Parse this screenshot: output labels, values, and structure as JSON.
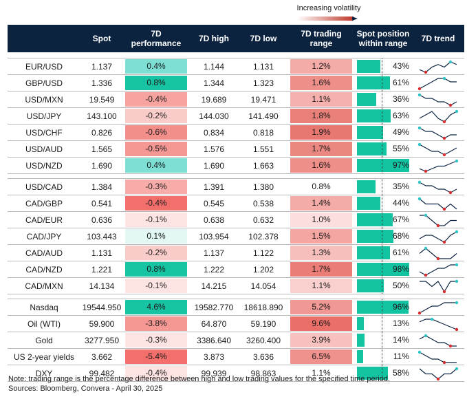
{
  "volatility_label": "Increasing volatility",
  "headers": {
    "pair": "",
    "spot": "Spot",
    "perf_line1": "7D",
    "perf_line2": "performance",
    "high": "7D high",
    "low": "7D low",
    "range_line1": "7D trading",
    "range_line2": "range",
    "pos_line1": "Spot position",
    "pos_line2": "within range",
    "trend": "7D trend"
  },
  "colors": {
    "header_bg": "#0c2340",
    "teal_bar": "#13c4a3",
    "trend_line": "#0c2340",
    "trend_min": "#d92b2b",
    "trend_max": "#2fc4c4"
  },
  "groups": [
    [
      {
        "name": "EUR/USD",
        "spot": "1.137",
        "perf": "0.4%",
        "high": "1.144",
        "low": "1.131",
        "range": "1.2%",
        "pos": "43%",
        "perf_v": 0.4,
        "range_v": 1.2,
        "pos_v": 43,
        "trend": [
          3,
          2,
          4,
          5,
          4,
          6,
          5
        ],
        "perf_c": "#7ee0d4",
        "range_c": "#f3aca8"
      },
      {
        "name": "GBP/USD",
        "spot": "1.336",
        "perf": "0.8%",
        "high": "1.344",
        "low": "1.323",
        "range": "1.6%",
        "pos": "61%",
        "perf_v": 0.8,
        "range_v": 1.6,
        "pos_v": 61,
        "trend": [
          2,
          3,
          4,
          5,
          5,
          4,
          4
        ],
        "perf_c": "#16c3a2",
        "range_c": "#ee8f8a"
      },
      {
        "name": "USD/MXN",
        "spot": "19.549",
        "perf": "-0.4%",
        "high": "19.689",
        "low": "19.471",
        "range": "1.1%",
        "pos": "36%",
        "perf_v": -0.4,
        "range_v": 1.1,
        "pos_v": 36,
        "trend": [
          5,
          4,
          4,
          3,
          3,
          2,
          3
        ],
        "perf_c": "#f7a4a1",
        "range_c": "#f4b1ad"
      },
      {
        "name": "USD/JPY",
        "spot": "143.100",
        "perf": "-0.2%",
        "high": "144.030",
        "low": "141.490",
        "range": "1.8%",
        "pos": "63%",
        "perf_v": -0.2,
        "range_v": 1.8,
        "pos_v": 63,
        "trend": [
          3,
          4,
          5,
          3,
          2,
          4,
          5
        ],
        "perf_c": "#f9cbc9",
        "range_c": "#ea807a"
      },
      {
        "name": "USD/CHF",
        "spot": "0.826",
        "perf": "-0.6%",
        "high": "0.834",
        "low": "0.818",
        "range": "1.9%",
        "pos": "49%",
        "perf_v": -0.6,
        "range_v": 1.9,
        "pos_v": 49,
        "trend": [
          5,
          4,
          4,
          3,
          2,
          3,
          3
        ],
        "perf_c": "#f38f8b",
        "range_c": "#e87772"
      },
      {
        "name": "USD/AUD",
        "spot": "1.565",
        "perf": "-0.5%",
        "high": "1.576",
        "low": "1.551",
        "range": "1.7%",
        "pos": "55%",
        "perf_v": -0.5,
        "range_v": 1.7,
        "pos_v": 55,
        "trend": [
          5,
          4,
          3,
          3,
          2,
          3,
          4
        ],
        "perf_c": "#f59894",
        "range_c": "#eb8781"
      },
      {
        "name": "USD/NZD",
        "spot": "1.690",
        "perf": "0.4%",
        "high": "1.690",
        "low": "1.663",
        "range": "1.6%",
        "pos": "97%",
        "perf_v": 0.4,
        "range_v": 1.6,
        "pos_v": 97,
        "trend": [
          2,
          1,
          2,
          3,
          3,
          4,
          5
        ],
        "perf_c": "#7ee0d4",
        "range_c": "#ee8f8a"
      }
    ],
    [
      {
        "name": "USD/CAD",
        "spot": "1.384",
        "perf": "-0.3%",
        "high": "1.391",
        "low": "1.380",
        "range": "0.8%",
        "pos": "35%",
        "perf_v": -0.3,
        "range_v": 0.8,
        "pos_v": 35,
        "trend": [
          5,
          4,
          4,
          3,
          3,
          2,
          3
        ],
        "perf_c": "#f7aca9",
        "range_c": "#ffffff"
      },
      {
        "name": "CAD/GBP",
        "spot": "0.541",
        "perf": "-0.4%",
        "high": "0.545",
        "low": "0.538",
        "range": "1.4%",
        "pos": "44%",
        "perf_v": -0.4,
        "range_v": 1.4,
        "pos_v": 44,
        "trend": [
          5,
          4,
          4,
          4,
          3,
          4,
          3
        ],
        "perf_c": "#f26f6b",
        "range_c": "#f4aca8"
      },
      {
        "name": "CAD/EUR",
        "spot": "0.636",
        "perf": "-0.1%",
        "high": "0.638",
        "low": "0.632",
        "range": "1.0%",
        "pos": "67%",
        "perf_v": -0.1,
        "range_v": 1.0,
        "pos_v": 67,
        "trend": [
          5,
          5,
          4,
          3,
          3,
          4,
          4
        ],
        "perf_c": "#fde4e3",
        "range_c": "#fbdedd"
      },
      {
        "name": "CAD/JPY",
        "spot": "103.443",
        "perf": "0.1%",
        "high": "103.954",
        "low": "102.378",
        "range": "1.5%",
        "pos": "68%",
        "perf_v": 0.1,
        "range_v": 1.5,
        "pos_v": 68,
        "trend": [
          3,
          4,
          4,
          3,
          2,
          4,
          5
        ],
        "perf_c": "#e3f8f5",
        "range_c": "#f3a6a2"
      },
      {
        "name": "CAD/AUD",
        "spot": "1.131",
        "perf": "-0.2%",
        "high": "1.137",
        "low": "1.122",
        "range": "1.3%",
        "pos": "61%",
        "perf_v": -0.2,
        "range_v": 1.3,
        "pos_v": 61,
        "trend": [
          4,
          5,
          4,
          3,
          3,
          3,
          4
        ],
        "perf_c": "#f9cbc9",
        "range_c": "#f6bfbc"
      },
      {
        "name": "CAD/NZD",
        "spot": "1.221",
        "perf": "0.8%",
        "high": "1.222",
        "low": "1.202",
        "range": "1.7%",
        "pos": "98%",
        "perf_v": 0.8,
        "range_v": 1.7,
        "pos_v": 98,
        "trend": [
          3,
          2,
          3,
          4,
          4,
          5,
          5
        ],
        "perf_c": "#16c3a2",
        "range_c": "#eb7d78"
      },
      {
        "name": "CAD/MXN",
        "spot": "14.134",
        "perf": "-0.1%",
        "high": "14.215",
        "low": "14.054",
        "range": "1.1%",
        "pos": "50%",
        "perf_v": -0.1,
        "range_v": 1.1,
        "pos_v": 50,
        "trend": [
          4,
          4,
          3,
          4,
          2,
          4,
          4
        ],
        "perf_c": "#fde4e3",
        "range_c": "#f9d0ce"
      }
    ],
    [
      {
        "name": "Nasdaq",
        "spot": "19544.950",
        "perf": "4.6%",
        "high": "19582.770",
        "low": "18618.890",
        "range": "5.2%",
        "pos": "96%",
        "perf_v": 4.6,
        "range_v": 5.2,
        "pos_v": 96,
        "trend": [
          2,
          3,
          4,
          4,
          5,
          5,
          5
        ],
        "perf_c": "#16c3a2",
        "range_c": "#f09893"
      },
      {
        "name": "Oil (WTI)",
        "spot": "59.900",
        "perf": "-3.8%",
        "high": "64.870",
        "low": "59.190",
        "range": "9.6%",
        "pos": "13%",
        "perf_v": -3.8,
        "range_v": 9.6,
        "pos_v": 13,
        "trend": [
          4,
          5,
          5,
          4,
          3,
          2,
          1
        ],
        "perf_c": "#f59894",
        "range_c": "#ea6f69"
      },
      {
        "name": "Gold",
        "spot": "3277.950",
        "perf": "-0.3%",
        "high": "3386.640",
        "low": "3260.400",
        "range": "3.9%",
        "pos": "14%",
        "perf_v": -0.3,
        "range_v": 3.9,
        "pos_v": 14,
        "trend": [
          4,
          5,
          4,
          3,
          3,
          2,
          2
        ],
        "perf_c": "#fde4e3",
        "range_c": "#f6c1be"
      },
      {
        "name": "US 2-year yields",
        "spot": "3.662",
        "perf": "-5.4%",
        "high": "3.873",
        "low": "3.636",
        "range": "6.5%",
        "pos": "11%",
        "perf_v": -5.4,
        "range_v": 6.5,
        "pos_v": 11,
        "trend": [
          5,
          4,
          3,
          3,
          2,
          2,
          2
        ],
        "perf_c": "#f26f6b",
        "range_c": "#ef918c"
      },
      {
        "name": "DXY",
        "spot": "99.482",
        "perf": "-0.4%",
        "high": "99.939",
        "low": "98.863",
        "range": "1.1%",
        "pos": "58%",
        "perf_v": -0.4,
        "range_v": 1.1,
        "pos_v": 58,
        "trend": [
          4,
          3,
          3,
          2,
          3,
          3,
          4
        ],
        "perf_c": "#fde4e3",
        "range_c": "#ffffff"
      }
    ]
  ],
  "chart_data": {
    "type": "table",
    "columns": [
      "",
      "Spot",
      "7D performance",
      "7D high",
      "7D low",
      "7D trading range",
      "Spot position within range",
      "7D trend"
    ],
    "rows": [
      [
        "EUR/USD",
        "1.137",
        "0.4%",
        "1.144",
        "1.131",
        "1.2%",
        "43%"
      ],
      [
        "GBP/USD",
        "1.336",
        "0.8%",
        "1.344",
        "1.323",
        "1.6%",
        "61%"
      ],
      [
        "USD/MXN",
        "19.549",
        "-0.4%",
        "19.689",
        "19.471",
        "1.1%",
        "36%"
      ],
      [
        "USD/JPY",
        "143.100",
        "-0.2%",
        "144.030",
        "141.490",
        "1.8%",
        "63%"
      ],
      [
        "USD/CHF",
        "0.826",
        "-0.6%",
        "0.834",
        "0.818",
        "1.9%",
        "49%"
      ],
      [
        "USD/AUD",
        "1.565",
        "-0.5%",
        "1.576",
        "1.551",
        "1.7%",
        "55%"
      ],
      [
        "USD/NZD",
        "1.690",
        "0.4%",
        "1.690",
        "1.663",
        "1.6%",
        "97%"
      ],
      [
        "USD/CAD",
        "1.384",
        "-0.3%",
        "1.391",
        "1.380",
        "0.8%",
        "35%"
      ],
      [
        "CAD/GBP",
        "0.541",
        "-0.4%",
        "0.545",
        "0.538",
        "1.4%",
        "44%"
      ],
      [
        "CAD/EUR",
        "0.636",
        "-0.1%",
        "0.638",
        "0.632",
        "1.0%",
        "67%"
      ],
      [
        "CAD/JPY",
        "103.443",
        "0.1%",
        "103.954",
        "102.378",
        "1.5%",
        "68%"
      ],
      [
        "CAD/AUD",
        "1.131",
        "-0.2%",
        "1.137",
        "1.122",
        "1.3%",
        "61%"
      ],
      [
        "CAD/NZD",
        "1.221",
        "0.8%",
        "1.222",
        "1.202",
        "1.7%",
        "98%"
      ],
      [
        "CAD/MXN",
        "14.134",
        "-0.1%",
        "14.215",
        "14.054",
        "1.1%",
        "50%"
      ],
      [
        "Nasdaq",
        "19544.950",
        "4.6%",
        "19582.770",
        "18618.890",
        "5.2%",
        "96%"
      ],
      [
        "Oil (WTI)",
        "59.900",
        "-3.8%",
        "64.870",
        "59.190",
        "9.6%",
        "13%"
      ],
      [
        "Gold",
        "3277.950",
        "-0.3%",
        "3386.640",
        "3260.400",
        "3.9%",
        "14%"
      ],
      [
        "US 2-year yields",
        "3.662",
        "-5.4%",
        "3.873",
        "3.636",
        "6.5%",
        "11%"
      ],
      [
        "DXY",
        "99.482",
        "-0.4%",
        "99.939",
        "98.863",
        "1.1%",
        "58%"
      ]
    ]
  },
  "footer": {
    "note": "Note: trading range is the percentage difference between high and low trading values for the specified time period.",
    "sources": "Sources: Bloomberg, Convera - April 30, 2025"
  }
}
